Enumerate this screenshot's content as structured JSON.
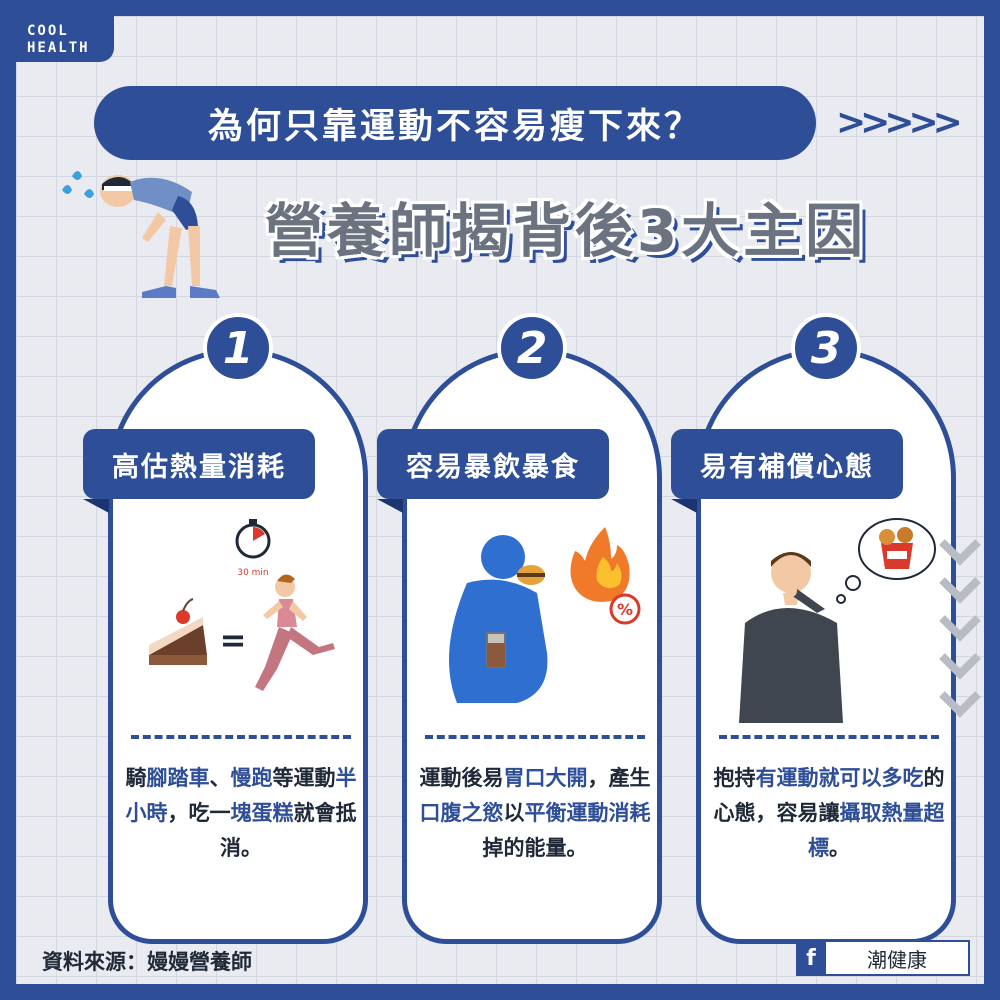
{
  "brand": {
    "logo_line1": "COOL",
    "logo_line2": "HEALTH"
  },
  "header": {
    "title": "為何只靠運動不容易瘦下來？",
    "arrows": ">>>>>",
    "subtitle": "營養師揭背後3大主因"
  },
  "cards": [
    {
      "number": "1",
      "label": "高估熱量消耗",
      "timer": "30 min",
      "equals": "=",
      "text": [
        {
          "t": "騎",
          "hl": false
        },
        {
          "t": "腳踏車",
          "hl": true
        },
        {
          "t": "、",
          "hl": false
        },
        {
          "t": "慢跑",
          "hl": true
        },
        {
          "t": "等運動",
          "hl": false
        },
        {
          "t": "半小時",
          "hl": true
        },
        {
          "t": "，吃一",
          "hl": false
        },
        {
          "t": "塊蛋糕",
          "hl": true
        },
        {
          "t": "就會抵消。",
          "hl": false
        }
      ]
    },
    {
      "number": "2",
      "label": "容易暴飲暴食",
      "percent": "%",
      "text": [
        {
          "t": "運動後易",
          "hl": false
        },
        {
          "t": "胃口大開",
          "hl": true
        },
        {
          "t": "，產生",
          "hl": false
        },
        {
          "t": "口腹之慾",
          "hl": true
        },
        {
          "t": "以",
          "hl": false
        },
        {
          "t": "平衡運動消耗",
          "hl": true
        },
        {
          "t": "掉的能量。",
          "hl": false
        }
      ]
    },
    {
      "number": "3",
      "label": "易有補償心態",
      "text": [
        {
          "t": "抱持",
          "hl": false
        },
        {
          "t": "有運動就可以",
          "hl": true
        },
        {
          "t": "多吃",
          "hl": true
        },
        {
          "t": "的心態，容易讓",
          "hl": false
        },
        {
          "t": "攝取熱量超標",
          "hl": true
        },
        {
          "t": "。",
          "hl": false
        }
      ]
    }
  ],
  "footer": {
    "source": "資料來源：嫚嫚營養師",
    "fb_icon": "f",
    "fb_name": "潮健康"
  },
  "icons": [
    "sweat-drops-icon",
    "tired-runner-icon",
    "stopwatch-icon",
    "cake-icon",
    "running-woman-icon",
    "eating-man-icon",
    "fire-icon",
    "thinking-man-icon",
    "fried-chicken-thought-icon",
    "chevron-down-icon",
    "facebook-icon"
  ],
  "colors": {
    "primary": "#2e4e98",
    "background": "#e9ebf0",
    "highlight": "#2e4e98"
  }
}
